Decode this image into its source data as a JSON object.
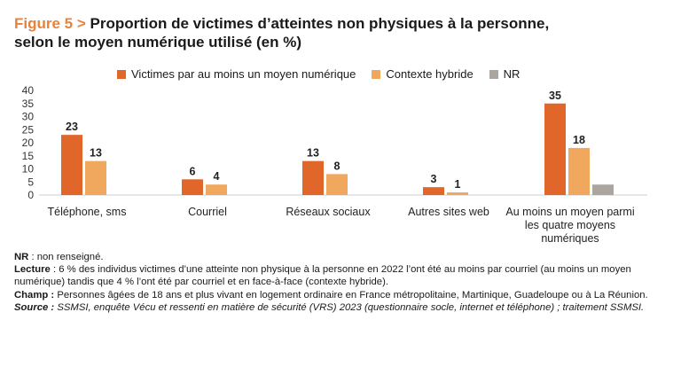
{
  "heading": {
    "figure": "Figure 5 >",
    "line1": "Proportion de victimes d’atteintes non physiques à la personne,",
    "line2": "selon le moyen numérique utilisé (en %)"
  },
  "chart_data": {
    "type": "bar",
    "categories": [
      [
        "Téléphone, sms"
      ],
      [
        "Courriel"
      ],
      [
        "Réseaux sociaux"
      ],
      [
        "Autres sites web"
      ],
      [
        "Au moins un moyen parmi",
        "les quatre moyens",
        "numériques"
      ]
    ],
    "series": [
      {
        "name": "Victimes par au moins un moyen numérique",
        "color": "#e0662a",
        "values": [
          23,
          6,
          13,
          3,
          35
        ],
        "labels": [
          "23",
          "6",
          "13",
          "3",
          "35"
        ]
      },
      {
        "name": "Contexte hybride",
        "color": "#f0a75e",
        "values": [
          13,
          4,
          8,
          1,
          18
        ],
        "labels": [
          "13",
          "4",
          "8",
          "1",
          "18"
        ]
      },
      {
        "name": "NR",
        "color": "#aaa59f",
        "values": [
          0,
          0,
          0,
          0,
          4
        ],
        "labels": [
          "",
          "",
          "",
          "",
          ""
        ]
      }
    ],
    "yticks": [
      0,
      5,
      10,
      15,
      20,
      25,
      30,
      35,
      40
    ],
    "ylim": [
      0,
      40
    ],
    "grid": false,
    "legend_position": "top"
  },
  "notes": {
    "nr_key": "NR",
    "nr_text": " : non renseigné.",
    "lecture_key": "Lecture",
    "lecture_text": " : 6 % des individus victimes d’une atteinte non physique à la personne en 2022 l’ont été au moins par courriel (au moins un moyen numérique) tandis que 4 % l’ont été par courriel et en face-à-face (contexte hybride).",
    "champ_key": "Champ :",
    "champ_text": " Personnes âgées de 18 ans et plus vivant en logement ordinaire en France métropolitaine, Martinique, Guadeloupe ou à La Réunion.",
    "source_key": "Source :",
    "source_text": " SSMSI, enquête Vécu et ressenti en matière de sécurité (VRS) 2023 (questionnaire socle, internet et téléphone) ; traitement SSMSI."
  }
}
